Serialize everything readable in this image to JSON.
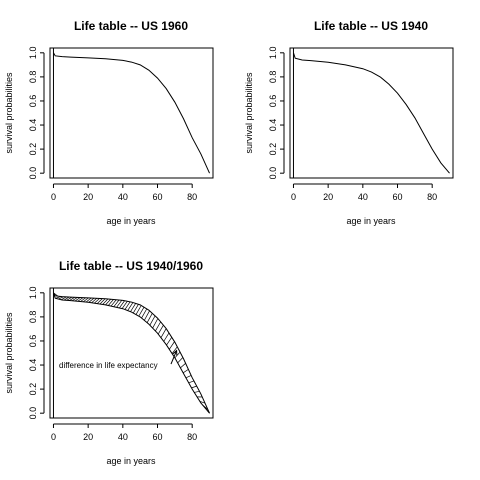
{
  "chart_data": [
    {
      "type": "line",
      "title": "Life table -- US 1960",
      "xlabel": "age in years",
      "ylabel": "survival probabilities",
      "xlim": [
        -2,
        92
      ],
      "ylim": [
        -0.04,
        1.04
      ],
      "xticks": [
        0,
        20,
        40,
        60,
        80
      ],
      "yticks": [
        0.0,
        0.2,
        0.4,
        0.6,
        0.8,
        1.0
      ],
      "vline": 0,
      "series": [
        {
          "x": [
            0,
            1,
            5,
            10,
            20,
            30,
            40,
            45,
            50,
            55,
            60,
            65,
            70,
            75,
            80,
            85,
            90
          ],
          "values": [
            1.0,
            0.975,
            0.968,
            0.964,
            0.958,
            0.951,
            0.937,
            0.923,
            0.9,
            0.856,
            0.79,
            0.703,
            0.59,
            0.452,
            0.295,
            0.16,
            0.0
          ]
        }
      ]
    },
    {
      "type": "line",
      "title": "Life table -- US 1940",
      "xlabel": "age in years",
      "ylabel": "survival probabilities",
      "xlim": [
        -2,
        92
      ],
      "ylim": [
        -0.04,
        1.04
      ],
      "xticks": [
        0,
        20,
        40,
        60,
        80
      ],
      "yticks": [
        0.0,
        0.2,
        0.4,
        0.6,
        0.8,
        1.0
      ],
      "vline": 0,
      "series": [
        {
          "x": [
            0,
            1,
            5,
            10,
            20,
            30,
            40,
            45,
            50,
            55,
            60,
            65,
            70,
            75,
            80,
            85,
            90
          ],
          "values": [
            1.0,
            0.955,
            0.94,
            0.935,
            0.922,
            0.9,
            0.868,
            0.84,
            0.8,
            0.74,
            0.665,
            0.57,
            0.46,
            0.33,
            0.2,
            0.085,
            0.0
          ]
        }
      ]
    },
    {
      "type": "area",
      "title": "Life table -- US 1940/1960",
      "xlabel": "age in years",
      "ylabel": "survival probabilities",
      "xlim": [
        -2,
        92
      ],
      "ylim": [
        -0.04,
        1.04
      ],
      "xticks": [
        0,
        20,
        40,
        60,
        80
      ],
      "yticks": [
        0.0,
        0.2,
        0.4,
        0.6,
        0.8,
        1.0
      ],
      "vline": 0,
      "x": [
        0,
        1,
        5,
        10,
        20,
        30,
        40,
        45,
        50,
        55,
        60,
        65,
        70,
        75,
        80,
        85,
        90
      ],
      "upper": [
        1.0,
        0.975,
        0.968,
        0.964,
        0.958,
        0.951,
        0.937,
        0.923,
        0.9,
        0.856,
        0.79,
        0.703,
        0.59,
        0.452,
        0.295,
        0.16,
        0.0
      ],
      "lower": [
        1.0,
        0.955,
        0.94,
        0.935,
        0.922,
        0.9,
        0.868,
        0.84,
        0.8,
        0.74,
        0.665,
        0.57,
        0.46,
        0.33,
        0.2,
        0.085,
        0.0
      ],
      "annotation": {
        "text": "difference in life expectancy",
        "arrow_to": [
          71,
          0.52
        ]
      }
    }
  ]
}
